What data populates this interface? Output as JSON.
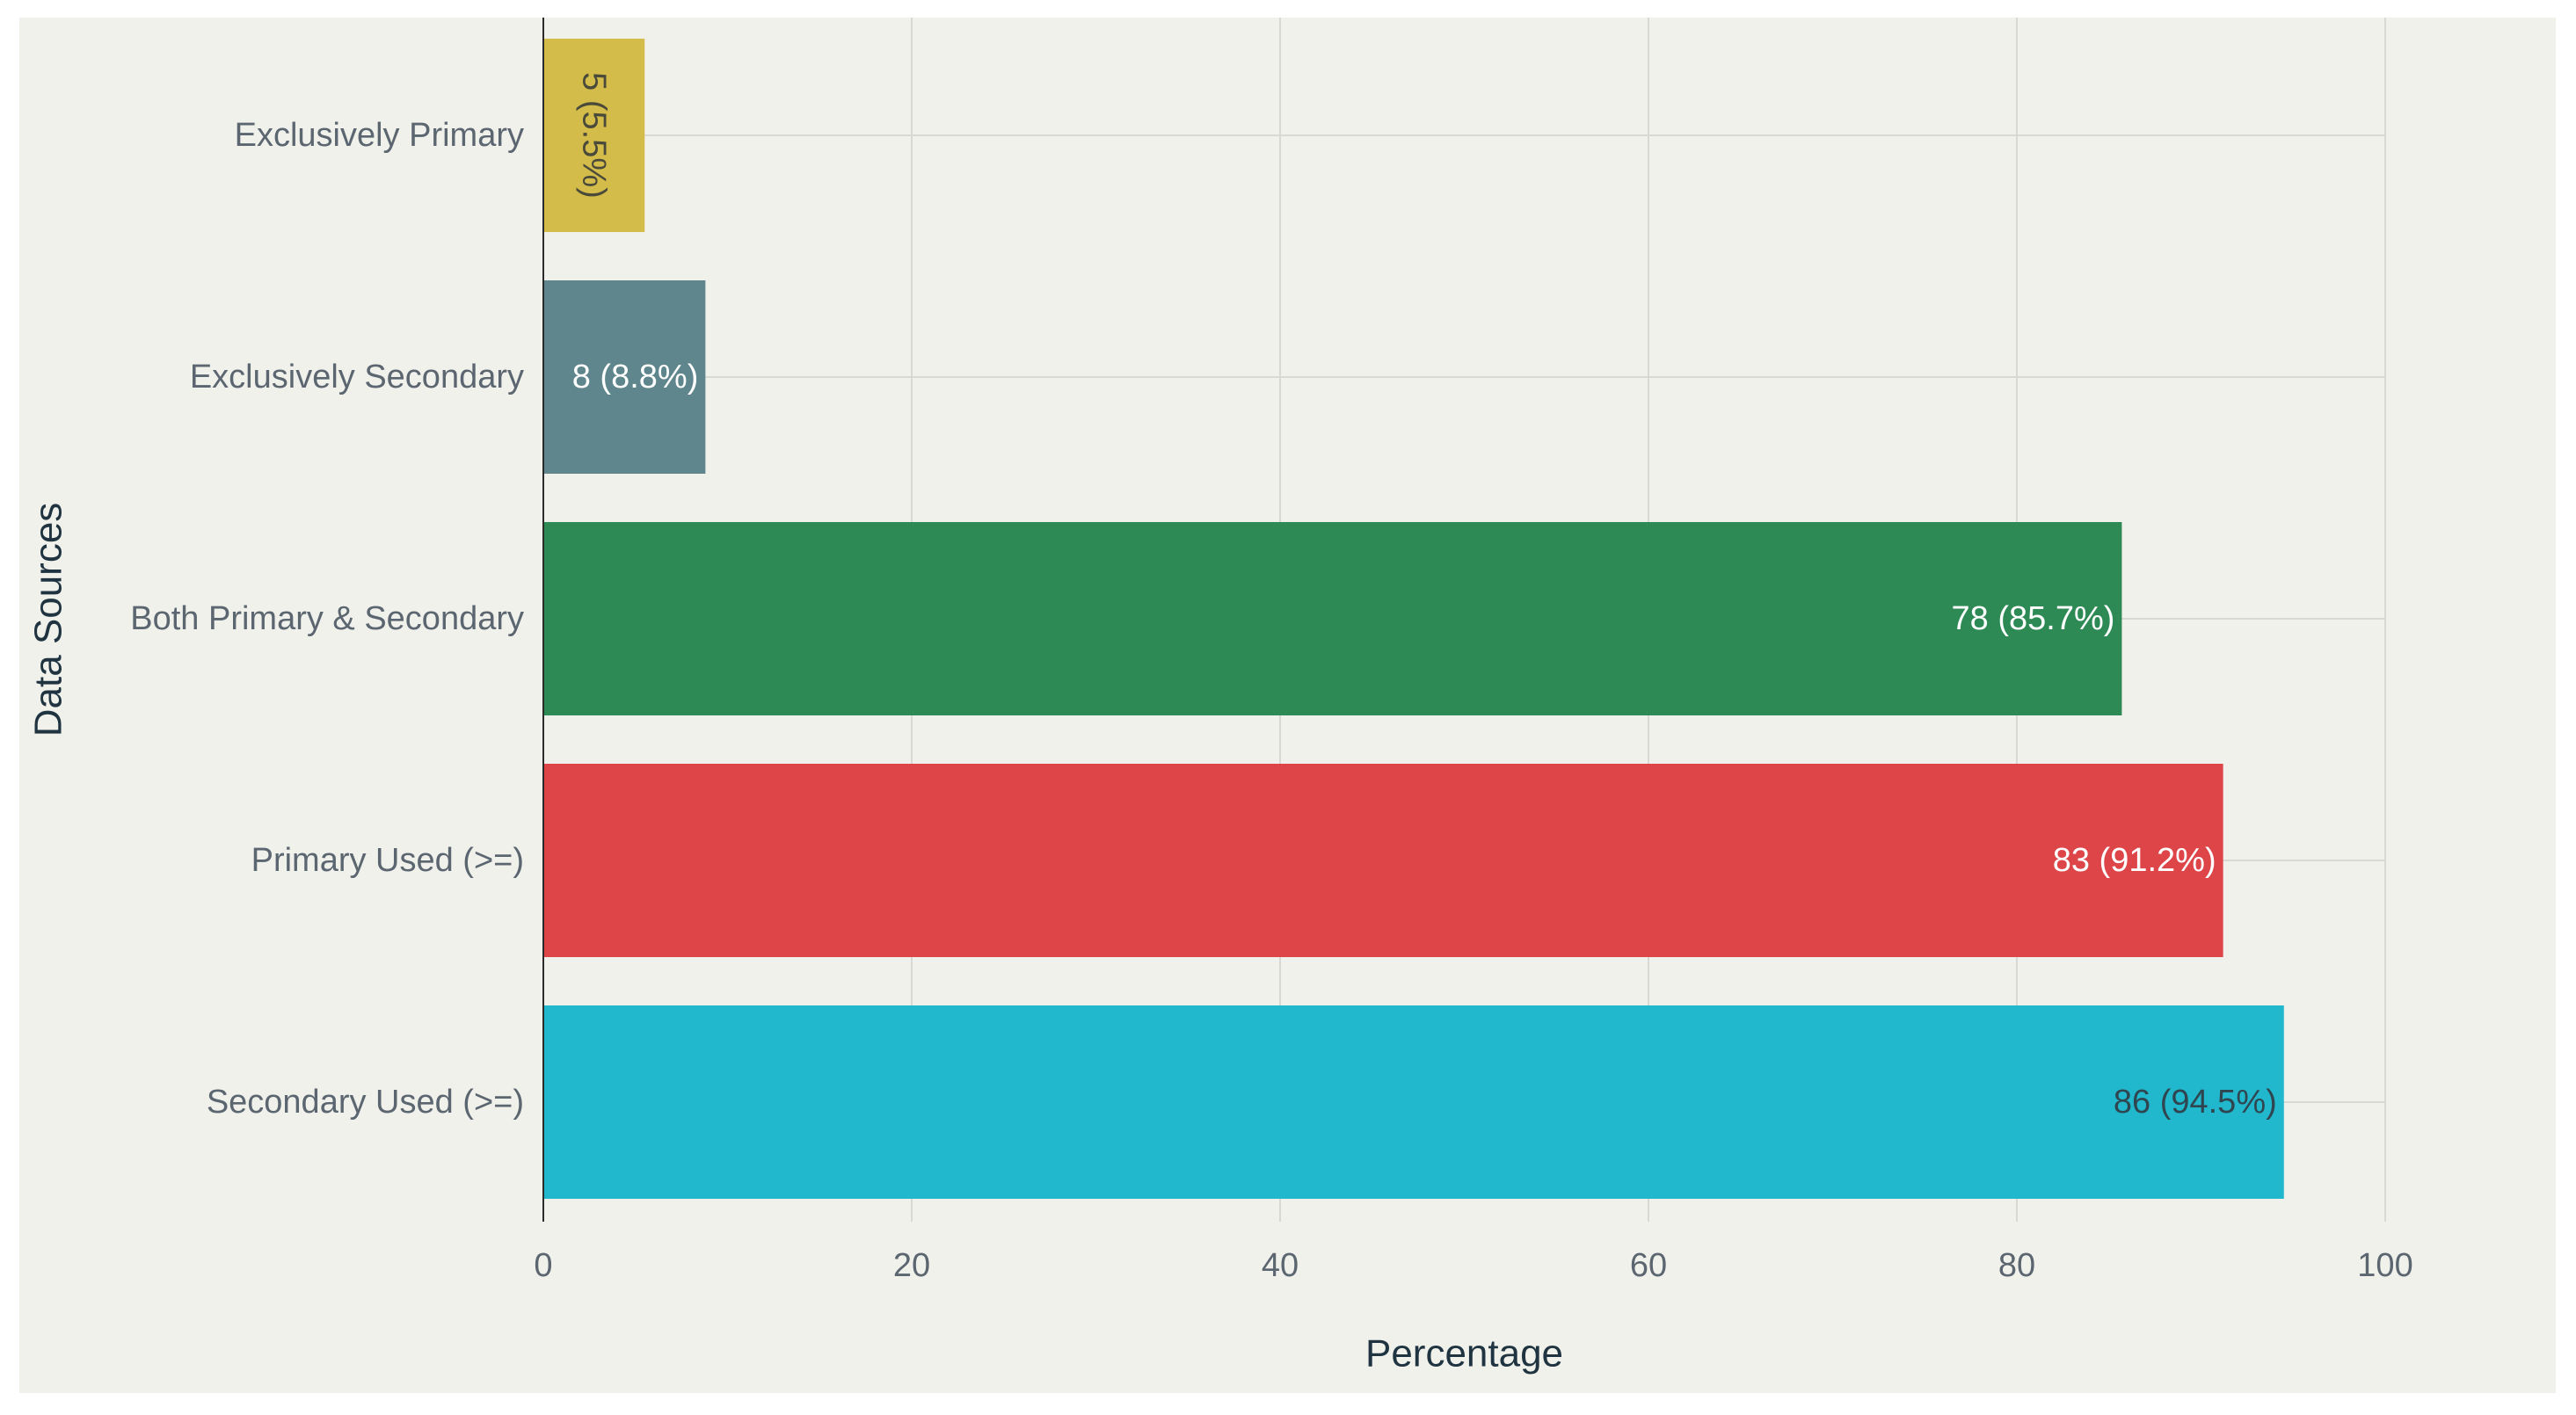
{
  "chart_data": {
    "type": "bar",
    "orientation": "horizontal",
    "title": "",
    "xlabel": "Percentage",
    "ylabel": "Data Sources",
    "xlim": [
      0,
      100
    ],
    "x_ticks": [
      0,
      20,
      40,
      60,
      80,
      100
    ],
    "grid": true,
    "categories": [
      "Exclusively Primary",
      "Exclusively Secondary",
      "Both Primary & Secondary",
      "Primary Used (>=)",
      "Secondary Used (>=)"
    ],
    "values": [
      5.5,
      8.8,
      85.7,
      91.2,
      94.5
    ],
    "counts": [
      5,
      8,
      78,
      83,
      86
    ],
    "data_labels": [
      "5 (5.5%)",
      "8 (8.8%)",
      "78 (85.7%)",
      "83 (91.2%)",
      "86 (94.5%)"
    ],
    "colors": [
      "#d4bc4a",
      "#5e868c",
      "#2e8a55",
      "#dd4548",
      "#21b8cd"
    ],
    "label_colors": [
      "#4a4a3a",
      "#ffffff",
      "#ffffff",
      "#ffffff",
      "#2f4650"
    ],
    "background_color": "#f1f1ec",
    "grid_color": "#d9d9d4"
  }
}
